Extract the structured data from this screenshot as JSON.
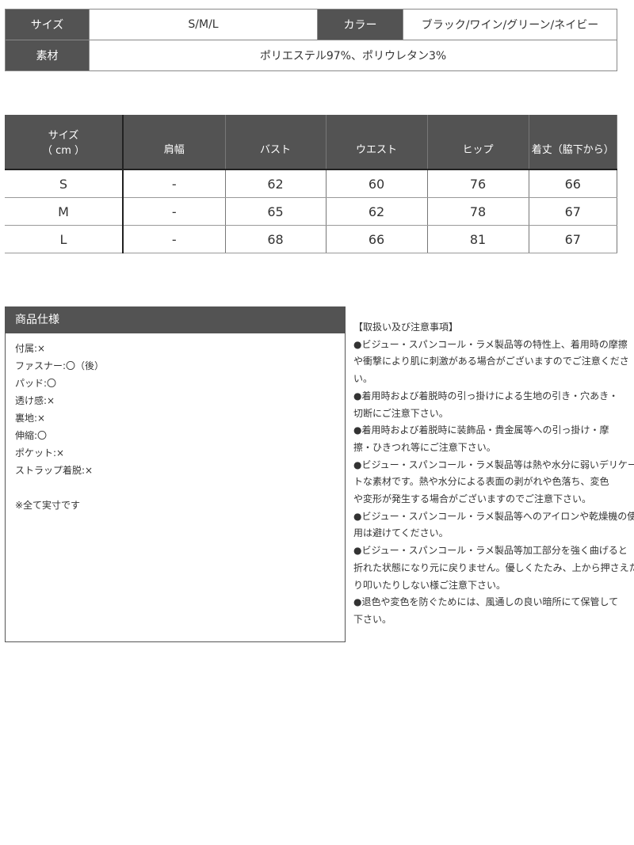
{
  "product_table": {
    "size_label": "サイズ",
    "size_value": "S/M/L",
    "color_label": "カラー",
    "color_value": "ブラック/ワイン/グリーン/ネイビー",
    "material_label": "素材",
    "material_value": "ポリエステル97%、ポリウレタン3%"
  },
  "size_table": {
    "headers": [
      "サイズ",
      "（ cm ）",
      "肩幅",
      "バスト",
      "ウエスト",
      "ヒップ",
      "着丈（脇下から）"
    ],
    "rows": [
      [
        "S",
        "-",
        "62",
        "60",
        "76",
        "66"
      ],
      [
        "M",
        "-",
        "65",
        "62",
        "78",
        "67"
      ],
      [
        "L",
        "-",
        "68",
        "66",
        "81",
        "67"
      ]
    ]
  },
  "spec": {
    "title": "商品仕様",
    "items": [
      "付属:×",
      "ファスナー:〇（後）",
      "パッド:〇",
      "透け感:×",
      "裏地:×",
      "伸縮:〇",
      "ポケット:×",
      "ストラップ着脱:×"
    ],
    "note": "※全て実寸です"
  },
  "care": {
    "title": "【取扱い及び注意事項】",
    "lines": [
      "●ビジュー・スパンコール・ラメ製品等の特性上、着用時の摩擦",
      "や衝撃により肌に刺激がある場合がございますのでご注意くださ",
      "い。",
      "●着用時および着脱時の引っ掛けによる生地の引き・穴あき・",
      "切断にご注意下さい。",
      "●着用時および着脱時に装飾品・貴金属等への引っ掛け・摩",
      "擦・ひきつれ等にご注意下さい。",
      "●ビジュー・スパンコール・ラメ製品等は熱や水分に弱いデリケー",
      "トな素材です。熱や水分による表面の剥がれや色落ち、変色",
      "や変形が発生する場合がございますのでご注意下さい。",
      "●ビジュー・スパンコール・ラメ製品等へのアイロンや乾燥機の使",
      "用は避けてください。",
      "●ビジュー・スパンコール・ラメ製品等加工部分を強く曲げると",
      "折れた状態になり元に戻りません。優しくたたみ、上から押さえた",
      "り叩いたりしない様ご注意下さい。",
      "●退色や変色を防ぐためには、風通しの良い暗所にて保管して",
      "下さい。"
    ]
  },
  "colors": {
    "header_bg": "#535353"
  }
}
